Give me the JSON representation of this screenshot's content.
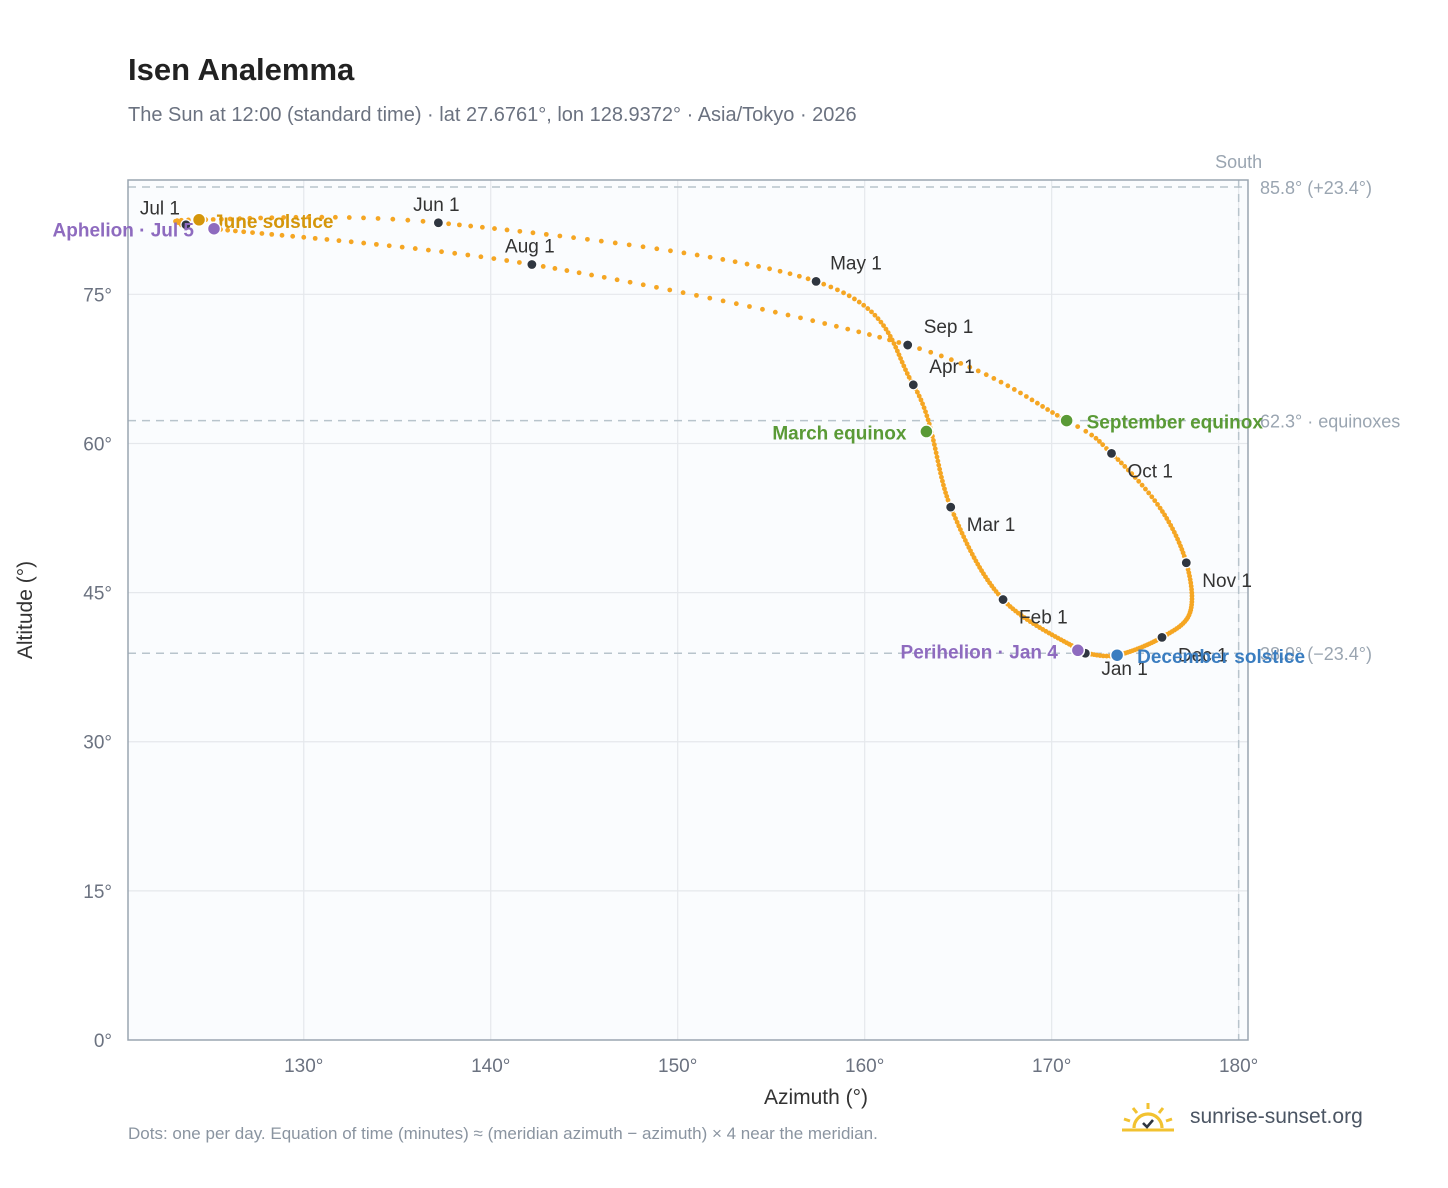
{
  "title": "Isen Analemma",
  "subtitle": "The Sun at 12:00 (standard time) · lat 27.6761°, lon 128.9372° · Asia/Tokyo · 2026",
  "footnote": "Dots: one per day. Equation of time (minutes) ≈ (meridian azimuth − azimuth) × 4 near the meridian.",
  "brand": "sunrise-sunset.org",
  "colors": {
    "curve": "#f5a623",
    "marker": "#2f3640",
    "june_solstice": "#d4960b",
    "december_solstice": "#3a7dc0",
    "equinox": "#5a9a36",
    "apsis": "#8e6bbf",
    "grid": "#e5e8ec",
    "plot_bg": "#fafcfe",
    "frame": "#9aa5b1",
    "ref_line": "#b8c4cc"
  },
  "chart_data": {
    "type": "scatter",
    "xlabel": "Azimuth (°)",
    "ylabel": "Altitude (°)",
    "xlim": [
      120.6,
      180.5
    ],
    "ylim": [
      0,
      86.5
    ],
    "x_ticks": [
      "130°",
      "140°",
      "150°",
      "160°",
      "170°",
      "180°"
    ],
    "x_tick_values": [
      130,
      140,
      150,
      160,
      170,
      180
    ],
    "y_ticks": [
      "0°",
      "15°",
      "30°",
      "45°",
      "60°",
      "75°"
    ],
    "y_tick_values": [
      0,
      15,
      30,
      45,
      60,
      75
    ],
    "grid": true,
    "south_azimuth": 180,
    "south_label": "South",
    "reference_lines": [
      {
        "altitude": 85.8,
        "label": "85.8° (+23.4°)"
      },
      {
        "altitude": 62.3,
        "label": "62.3° · equinoxes"
      },
      {
        "altitude": 38.9,
        "label": "38.9° (−23.4°)"
      }
    ],
    "month_markers": [
      {
        "label": "Jan 1",
        "azimuth": 171.8,
        "altitude": 38.9
      },
      {
        "label": "Feb 1",
        "azimuth": 167.4,
        "altitude": 44.3
      },
      {
        "label": "Mar 1",
        "azimuth": 164.6,
        "altitude": 53.6
      },
      {
        "label": "Apr 1",
        "azimuth": 162.6,
        "altitude": 65.9
      },
      {
        "label": "May 1",
        "azimuth": 157.4,
        "altitude": 76.3
      },
      {
        "label": "Jun 1",
        "azimuth": 137.2,
        "altitude": 82.2
      },
      {
        "label": "Jul 1",
        "azimuth": 123.7,
        "altitude": 82.0
      },
      {
        "label": "Aug 1",
        "azimuth": 142.2,
        "altitude": 78.0
      },
      {
        "label": "Sep 1",
        "azimuth": 162.3,
        "altitude": 69.9
      },
      {
        "label": "Oct 1",
        "azimuth": 173.2,
        "altitude": 59.0
      },
      {
        "label": "Nov 1",
        "azimuth": 177.2,
        "altitude": 48.0
      },
      {
        "label": "Dec 1",
        "azimuth": 175.9,
        "altitude": 40.5
      }
    ],
    "events": [
      {
        "label": "June solstice",
        "azimuth": 124.4,
        "altitude": 82.5
      },
      {
        "label": "Aphelion · Jul 5",
        "azimuth": 125.2,
        "altitude": 81.6
      },
      {
        "label": "March equinox",
        "azimuth": 163.3,
        "altitude": 61.2
      },
      {
        "label": "September equinox",
        "azimuth": 170.8,
        "altitude": 62.3
      },
      {
        "label": "Perihelion · Jan 4",
        "azimuth": 171.4,
        "altitude": 39.2
      },
      {
        "label": "December solstice",
        "azimuth": 173.5,
        "altitude": 38.7
      }
    ]
  }
}
